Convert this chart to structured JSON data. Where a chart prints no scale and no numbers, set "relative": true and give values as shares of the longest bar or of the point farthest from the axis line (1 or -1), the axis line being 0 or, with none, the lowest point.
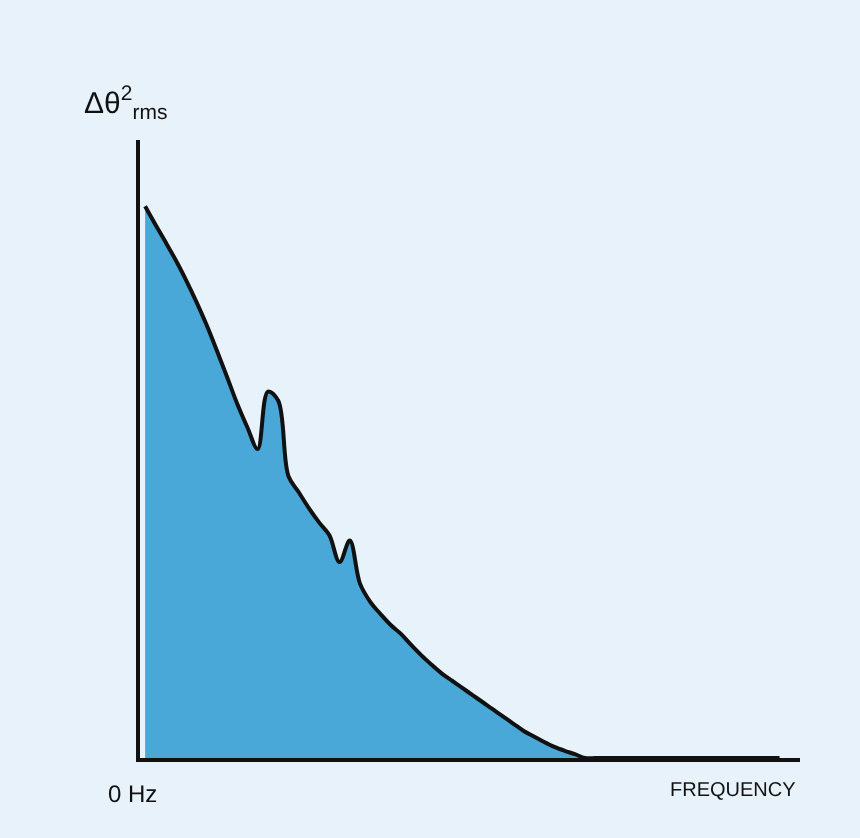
{
  "chart_data": {
    "type": "area",
    "relative": true,
    "ylabel": "Δθ$^{2}$$_{rms}$",
    "xlabel": "FREQUENCY",
    "annotations": [
      "0 Hz"
    ],
    "categories": [
      null,
      null,
      null,
      null,
      null,
      null,
      null,
      null,
      null,
      null,
      null,
      null,
      null,
      null,
      null,
      null,
      null,
      null,
      null,
      null,
      null,
      null,
      null,
      null,
      null,
      null,
      null,
      null,
      null,
      null,
      null,
      null,
      null,
      null,
      null,
      null,
      null,
      null,
      null,
      null,
      null,
      null,
      null,
      null,
      null,
      null,
      null,
      null,
      null,
      null,
      null,
      null,
      null,
      null,
      null,
      null,
      null,
      null,
      null,
      null,
      null,
      null,
      null
    ],
    "series": [
      {
        "color": "#4aa8d8",
        "values": [
          1.0,
          0.967,
          0.935,
          0.902,
          0.866,
          0.827,
          0.785,
          0.739,
          0.691,
          0.642,
          0.599,
          0.56,
          0.664,
          0.648,
          0.511,
          0.482,
          0.453,
          0.427,
          0.404,
          0.355,
          0.394,
          0.316,
          0.283,
          0.261,
          0.241,
          0.225,
          0.205,
          0.186,
          0.169,
          0.153,
          0.14,
          0.127,
          0.114,
          0.101,
          0.088,
          0.075,
          0.062,
          0.049,
          0.039,
          0.029,
          0.02,
          0.013,
          0.007,
          0,
          0,
          0,
          0,
          0,
          0,
          0,
          0,
          0,
          0,
          0,
          0,
          0,
          0,
          0,
          0,
          0,
          0,
          0,
          0
        ]
      }
    ]
  }
}
